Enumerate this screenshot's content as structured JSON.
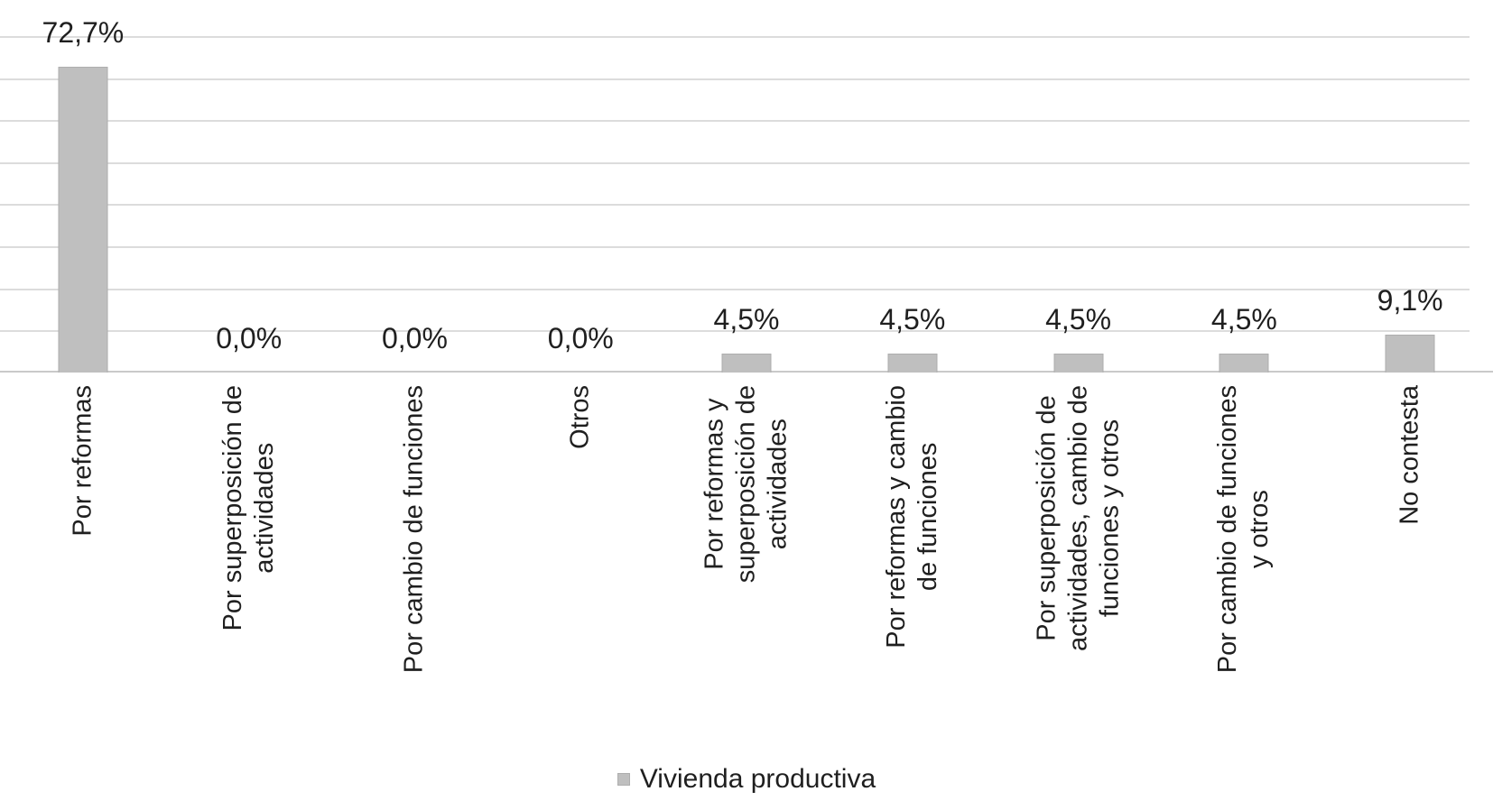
{
  "chart_data": {
    "type": "bar",
    "categories": [
      "Por reformas",
      "Por superposición de actividades",
      "Por cambio de funciones",
      "Otros",
      "Por reformas y superposición de actividades",
      "Por reformas y cambio de funciones",
      "Por superposición de actividades, cambio de funciones y otros",
      "Por cambio de funciones y otros",
      "No contesta"
    ],
    "category_lines": [
      [
        "Por reformas"
      ],
      [
        "Por superposición de",
        "actividades"
      ],
      [
        "Por cambio de funciones"
      ],
      [
        "Otros"
      ],
      [
        "Por reformas y",
        "superposición de",
        "actividades"
      ],
      [
        "Por reformas y cambio",
        "de funciones"
      ],
      [
        "Por superposición de",
        "actividades, cambio de",
        "funciones y otros"
      ],
      [
        "Por cambio de funciones",
        "y otros"
      ],
      [
        "No contesta"
      ]
    ],
    "series": [
      {
        "name": "Vivienda productiva",
        "values": [
          72.7,
          0.0,
          0.0,
          0.0,
          4.5,
          4.5,
          4.5,
          4.5,
          9.1
        ],
        "value_labels": [
          "72,7%",
          "0,0%",
          "0,0%",
          "0,0%",
          "4,5%",
          "4,5%",
          "4,5%",
          "4,5%",
          "9,1%"
        ]
      }
    ],
    "legend": {
      "label": "Vivienda productiva",
      "position": "bottom"
    },
    "ylim": [
      0,
      80
    ],
    "gridline_step": 10,
    "grid": true,
    "y_tick_labels_visible": false,
    "colors": {
      "bar_fill": "#bfbfbf",
      "bar_border": "#aeaeae",
      "gridline": "#dcdcdc",
      "axis_line": "#c9c9c9",
      "text": "#1f1f1f",
      "background": "#ffffff"
    }
  }
}
